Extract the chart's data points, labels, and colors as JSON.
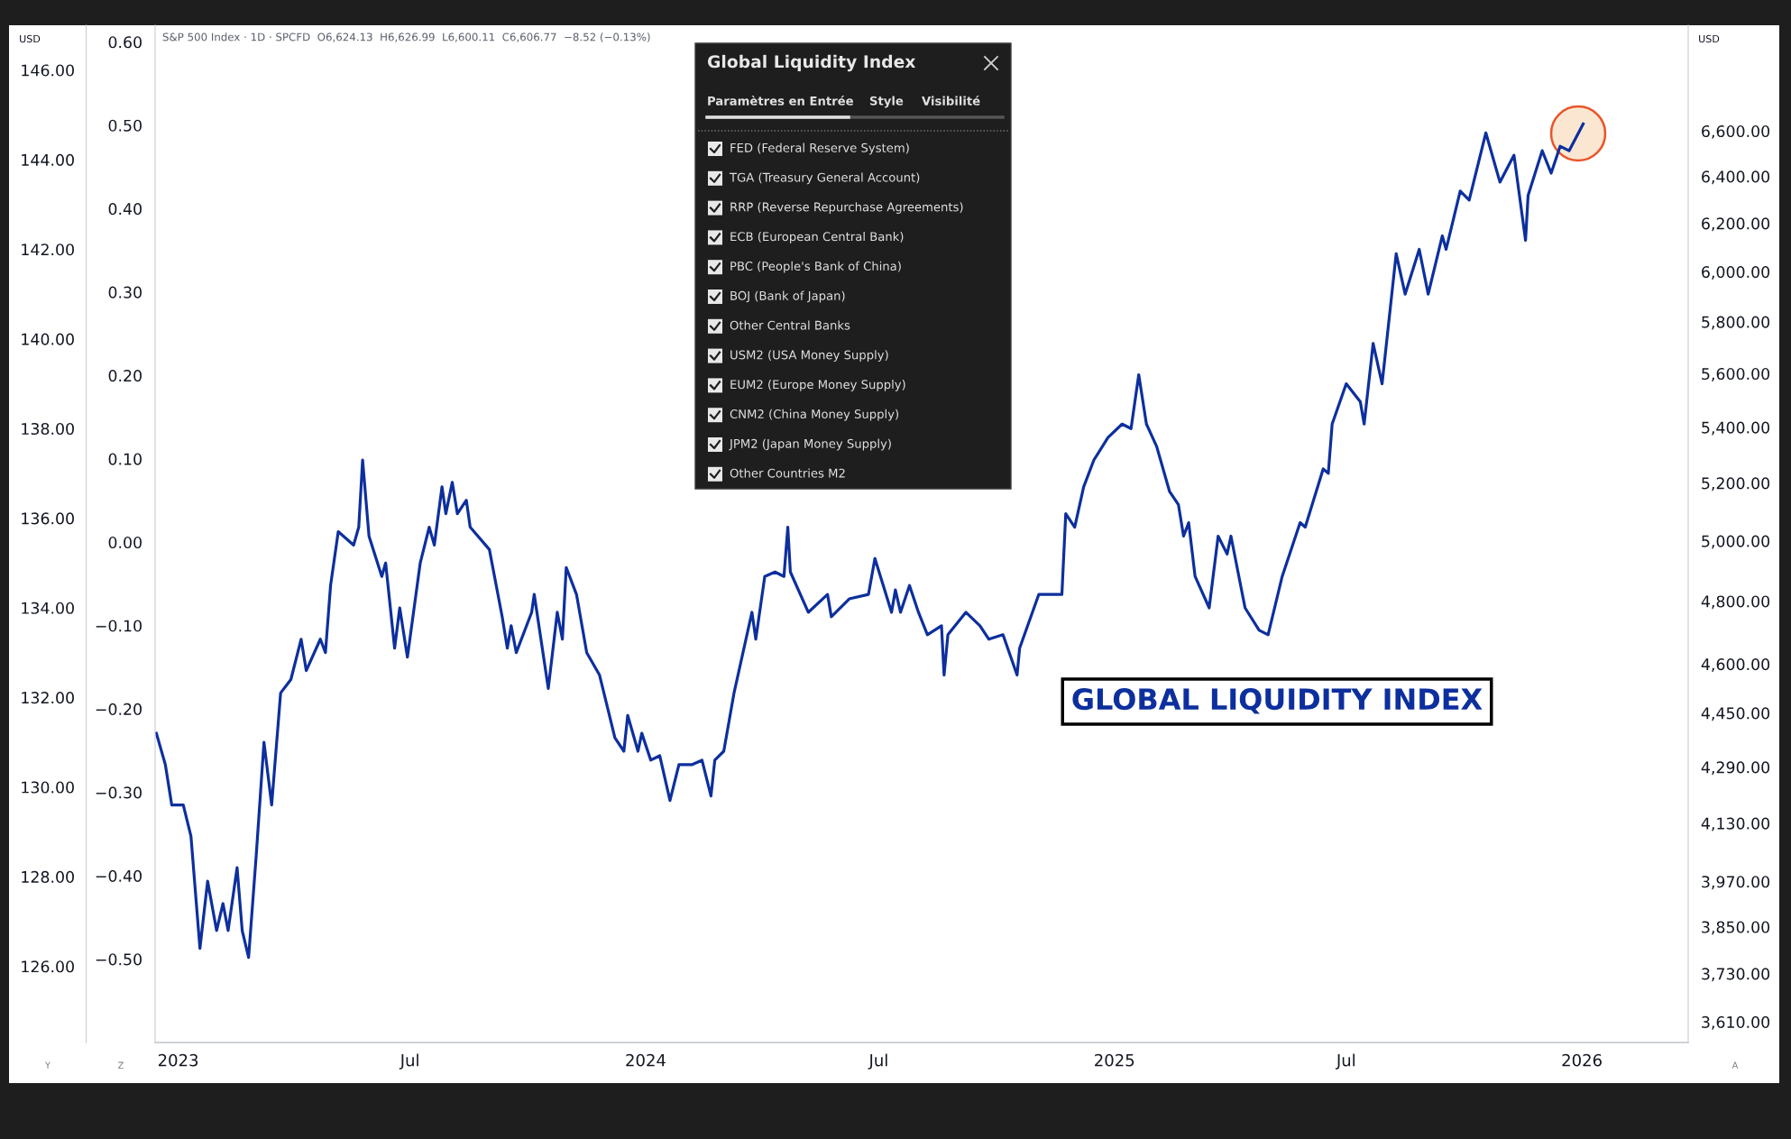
{
  "chart_data": {
    "type": "line",
    "ylabel": "USD",
    "y2label": "USD",
    "xlim": [
      "2022-12-14",
      "2026-03-25"
    ],
    "xticks": [
      {
        "value": "2023-01-01",
        "label": "2023"
      },
      {
        "value": "2023-07-01",
        "label": "Jul"
      },
      {
        "value": "2024-01-01",
        "label": "2024"
      },
      {
        "value": "2024-07-01",
        "label": "Jul"
      },
      {
        "value": "2025-01-01",
        "label": "2025"
      },
      {
        "value": "2025-07-01",
        "label": "Jul"
      },
      {
        "value": "2026-01-01",
        "label": "2026"
      }
    ],
    "ylim": [
      124.3,
      147.0
    ],
    "yticks": [
      {
        "value": 126,
        "label": "126.00"
      },
      {
        "value": 128,
        "label": "128.00"
      },
      {
        "value": 130,
        "label": "130.00"
      },
      {
        "value": 132,
        "label": "132.00"
      },
      {
        "value": 134,
        "label": "134.00"
      },
      {
        "value": 136,
        "label": "136.00"
      },
      {
        "value": 138,
        "label": "138.00"
      },
      {
        "value": 140,
        "label": "140.00"
      },
      {
        "value": 142,
        "label": "142.00"
      },
      {
        "value": 144,
        "label": "144.00"
      },
      {
        "value": 146,
        "label": "146.00"
      }
    ],
    "y3lim": [
      -0.6,
      0.62
    ],
    "y3ticks": [
      {
        "value": 0.6,
        "label": "0.60"
      },
      {
        "value": 0.5,
        "label": "0.50"
      },
      {
        "value": 0.4,
        "label": "0.40"
      },
      {
        "value": 0.3,
        "label": "0.30"
      },
      {
        "value": 0.2,
        "label": "0.20"
      },
      {
        "value": 0.1,
        "label": "0.10"
      },
      {
        "value": 0,
        "label": "0.00"
      },
      {
        "value": -0.1,
        "label": "−0.10"
      },
      {
        "value": -0.2,
        "label": "−0.20"
      },
      {
        "value": -0.3,
        "label": "−0.30"
      },
      {
        "value": -0.4,
        "label": "−0.40"
      },
      {
        "value": -0.5,
        "label": "−0.50"
      }
    ],
    "log": "y2",
    "y2lim": [
      3560,
      7090
    ],
    "y2ticks": [
      {
        "value": 3610,
        "label": "3,610.00"
      },
      {
        "value": 3730,
        "label": "3,730.00"
      },
      {
        "value": 3850,
        "label": "3,850.00"
      },
      {
        "value": 3970,
        "label": "3,970.00"
      },
      {
        "value": 4130,
        "label": "4,130.00"
      },
      {
        "value": 4290,
        "label": "4,290.00"
      },
      {
        "value": 4450,
        "label": "4,450.00"
      },
      {
        "value": 4600,
        "label": "4,600.00"
      },
      {
        "value": 4800,
        "label": "4,800.00"
      },
      {
        "value": 5000,
        "label": "5,000.00"
      },
      {
        "value": 5200,
        "label": "5,200.00"
      },
      {
        "value": 5400,
        "label": "5,400.00"
      },
      {
        "value": 5600,
        "label": "5,600.00"
      },
      {
        "value": 5800,
        "label": "5,800.00"
      },
      {
        "value": 6000,
        "label": "6,000.00"
      },
      {
        "value": 6200,
        "label": "6,200.00"
      },
      {
        "value": 6400,
        "label": "6,400.00"
      },
      {
        "value": 6600,
        "label": "6,600.00"
      }
    ],
    "grid": false,
    "legend": false,
    "series": [
      {
        "color": "#0d2f9e",
        "x": [
          "2022-12-15",
          "2022-12-22",
          "2022-12-27",
          "2023-01-05",
          "2023-01-11",
          "2023-01-18",
          "2023-01-24",
          "2023-01-31",
          "2023-02-05",
          "2023-02-09",
          "2023-02-16",
          "2023-02-20",
          "2023-02-25",
          "2023-03-03",
          "2023-03-09",
          "2023-03-15",
          "2023-03-22",
          "2023-03-30",
          "2023-04-07",
          "2023-04-11",
          "2023-04-22",
          "2023-04-26",
          "2023-04-30",
          "2023-05-06",
          "2023-05-18",
          "2023-05-22",
          "2023-05-25",
          "2023-05-30",
          "2023-06-09",
          "2023-06-12",
          "2023-06-19",
          "2023-06-23",
          "2023-06-29",
          "2023-07-09",
          "2023-07-16",
          "2023-07-20",
          "2023-07-26",
          "2023-07-29",
          "2023-08-03",
          "2023-08-07",
          "2023-08-14",
          "2023-08-17",
          "2023-09-01",
          "2023-09-11",
          "2023-09-15",
          "2023-09-18",
          "2023-09-22",
          "2023-10-04",
          "2023-10-06",
          "2023-10-17",
          "2023-10-24",
          "2023-10-28",
          "2023-10-31",
          "2023-11-08",
          "2023-11-16",
          "2023-11-26",
          "2023-12-08",
          "2023-12-15",
          "2023-12-18",
          "2023-12-26",
          "2023-12-29",
          "2024-01-05",
          "2024-01-12",
          "2024-01-20",
          "2024-01-27",
          "2024-02-06",
          "2024-02-14",
          "2024-02-21",
          "2024-02-24",
          "2024-03-02",
          "2024-03-10",
          "2024-03-24",
          "2024-03-27",
          "2024-04-03",
          "2024-04-11",
          "2024-04-18",
          "2024-04-21",
          "2024-04-23",
          "2024-05-07",
          "2024-05-22",
          "2024-05-25",
          "2024-06-08",
          "2024-06-23",
          "2024-06-28",
          "2024-07-11",
          "2024-07-14",
          "2024-07-18",
          "2024-07-25",
          "2024-08-01",
          "2024-08-08",
          "2024-08-19",
          "2024-08-21",
          "2024-08-24",
          "2024-09-07",
          "2024-09-18",
          "2024-09-25",
          "2024-10-06",
          "2024-10-17",
          "2024-10-19",
          "2024-11-03",
          "2024-11-21",
          "2024-11-24",
          "2024-12-01",
          "2024-12-08",
          "2024-12-16",
          "2024-12-27",
          "2025-01-07",
          "2025-01-14",
          "2025-01-20",
          "2025-01-26",
          "2025-02-03",
          "2025-02-13",
          "2025-02-20",
          "2025-02-24",
          "2025-02-28",
          "2025-03-05",
          "2025-03-16",
          "2025-03-23",
          "2025-03-30",
          "2025-04-02",
          "2025-04-13",
          "2025-04-24",
          "2025-05-01",
          "2025-05-12",
          "2025-05-26",
          "2025-05-30",
          "2025-06-13",
          "2025-06-17",
          "2025-06-20",
          "2025-07-01",
          "2025-07-12",
          "2025-07-15",
          "2025-07-22",
          "2025-07-29",
          "2025-08-09",
          "2025-08-16",
          "2025-08-27",
          "2025-09-03",
          "2025-09-14",
          "2025-09-17",
          "2025-09-28",
          "2025-10-05",
          "2025-10-18",
          "2025-10-29",
          "2025-11-09",
          "2025-11-18",
          "2025-11-20",
          "2025-12-01",
          "2025-12-08",
          "2025-12-15",
          "2025-12-22",
          "2026-01-02"
        ],
        "values": [
          131.2,
          130.5,
          129.6,
          129.6,
          128.9,
          126.4,
          127.9,
          126.8,
          127.4,
          126.8,
          128.2,
          126.8,
          126.2,
          128.5,
          131.0,
          129.6,
          132.1,
          132.4,
          133.3,
          132.6,
          133.3,
          133.0,
          134.5,
          135.7,
          135.4,
          135.8,
          137.3,
          135.6,
          134.7,
          135.0,
          133.1,
          134.0,
          132.9,
          135.0,
          135.8,
          135.4,
          136.7,
          136.1,
          136.8,
          136.1,
          136.4,
          135.8,
          135.3,
          133.8,
          133.1,
          133.6,
          133.0,
          133.9,
          134.3,
          132.2,
          133.9,
          133.3,
          134.9,
          134.3,
          133.0,
          132.5,
          131.1,
          130.8,
          131.6,
          130.8,
          131.2,
          130.6,
          130.7,
          129.7,
          130.5,
          130.5,
          130.6,
          129.8,
          130.6,
          130.8,
          132.1,
          133.9,
          133.3,
          134.7,
          134.8,
          134.7,
          135.8,
          134.8,
          133.9,
          134.3,
          133.8,
          134.2,
          134.3,
          135.1,
          133.9,
          134.4,
          133.9,
          134.5,
          133.9,
          133.4,
          133.6,
          132.5,
          133.4,
          133.9,
          133.6,
          133.3,
          133.4,
          132.5,
          133.1,
          134.3,
          134.3,
          136.1,
          135.8,
          136.7,
          137.3,
          137.8,
          138.1,
          138.0,
          139.2,
          138.1,
          137.6,
          136.6,
          136.3,
          135.6,
          135.9,
          134.7,
          134.0,
          135.6,
          135.2,
          135.6,
          134.0,
          133.5,
          133.4,
          134.7,
          135.9,
          135.8,
          137.1,
          137.0,
          138.1,
          139.0,
          138.6,
          138.1,
          139.9,
          139.0,
          141.9,
          141.0,
          142.0,
          141.0,
          142.3,
          142.0,
          143.3,
          143.1,
          144.6,
          143.5,
          144.1,
          142.2,
          143.2,
          144.2,
          143.7,
          144.3,
          144.2,
          144.8
        ]
      }
    ],
    "annotations": [
      "S&P 500 Index · 1D · SPCFD  O6,624.13  H6,626.99  L6,600.11  C6,606.77  −8.52 (−0.13%)",
      "GLOBAL LIQUIDITY INDEX",
      "Global Liquidity Index",
      "Paramètres en Entrée",
      "Style",
      "Visibilité",
      "FED (Federal Reserve System)",
      "TGA (Treasury General Account)",
      "RRP (Reverse Repurchase Agreements)",
      "ECB (European Central Bank)",
      "PBC (People's Bank of China)",
      "BOJ (Bank of Japan)",
      "Other Central Banks",
      "USM2 (USA Money Supply)",
      "EUM2 (Europe Money Supply)",
      "CNM2 (China Money Supply)",
      "JPM2 (Japan Money Supply)",
      "Other Countries M2",
      "Y",
      "Z",
      "A"
    ]
  }
}
